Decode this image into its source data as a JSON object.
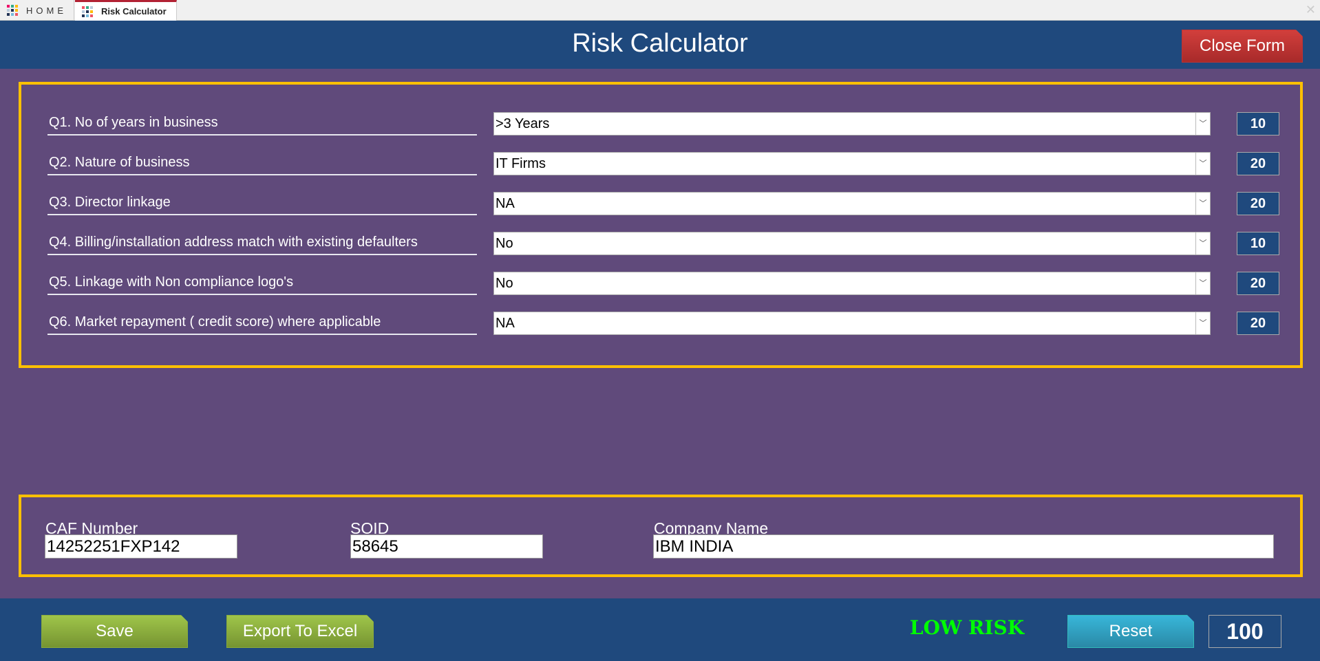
{
  "tabs": [
    {
      "label": "HOME"
    },
    {
      "label": "Risk Calculator"
    }
  ],
  "header": {
    "title": "Risk Calculator",
    "close_label": "Close Form"
  },
  "questions": [
    {
      "label": "Q1.  No of years in business",
      "value": ">3 Years",
      "score": "10"
    },
    {
      "label": "Q2.  Nature of business",
      "value": "IT Firms",
      "score": "20"
    },
    {
      "label": "Q3.  Director linkage",
      "value": "NA",
      "score": "20"
    },
    {
      "label": "Q4.  Billing/installation address match with existing defaulters",
      "value": "No",
      "score": "10"
    },
    {
      "label": "Q5.  Linkage with Non compliance logo's",
      "value": "No",
      "score": "20"
    },
    {
      "label": "Q6.  Market repayment ( credit score) where applicable",
      "value": "NA",
      "score": "20"
    }
  ],
  "info": {
    "caf_label": "CAF Number",
    "caf_value": "14252251FXP142",
    "soid_label": "SOID",
    "soid_value": "58645",
    "company_label": "Company Name",
    "company_value": "IBM INDIA"
  },
  "footer": {
    "save_label": "Save",
    "export_label": "Export To Excel",
    "risk_level": "LOW RISK",
    "reset_label": "Reset",
    "total_score": "100"
  },
  "colors": {
    "header": "#1f497d",
    "body": "#604a7b",
    "frame": "#ffc000",
    "risk": "#00ff00",
    "close": "#c0392b",
    "save": "#8fb53a",
    "reset": "#31a9cc"
  }
}
